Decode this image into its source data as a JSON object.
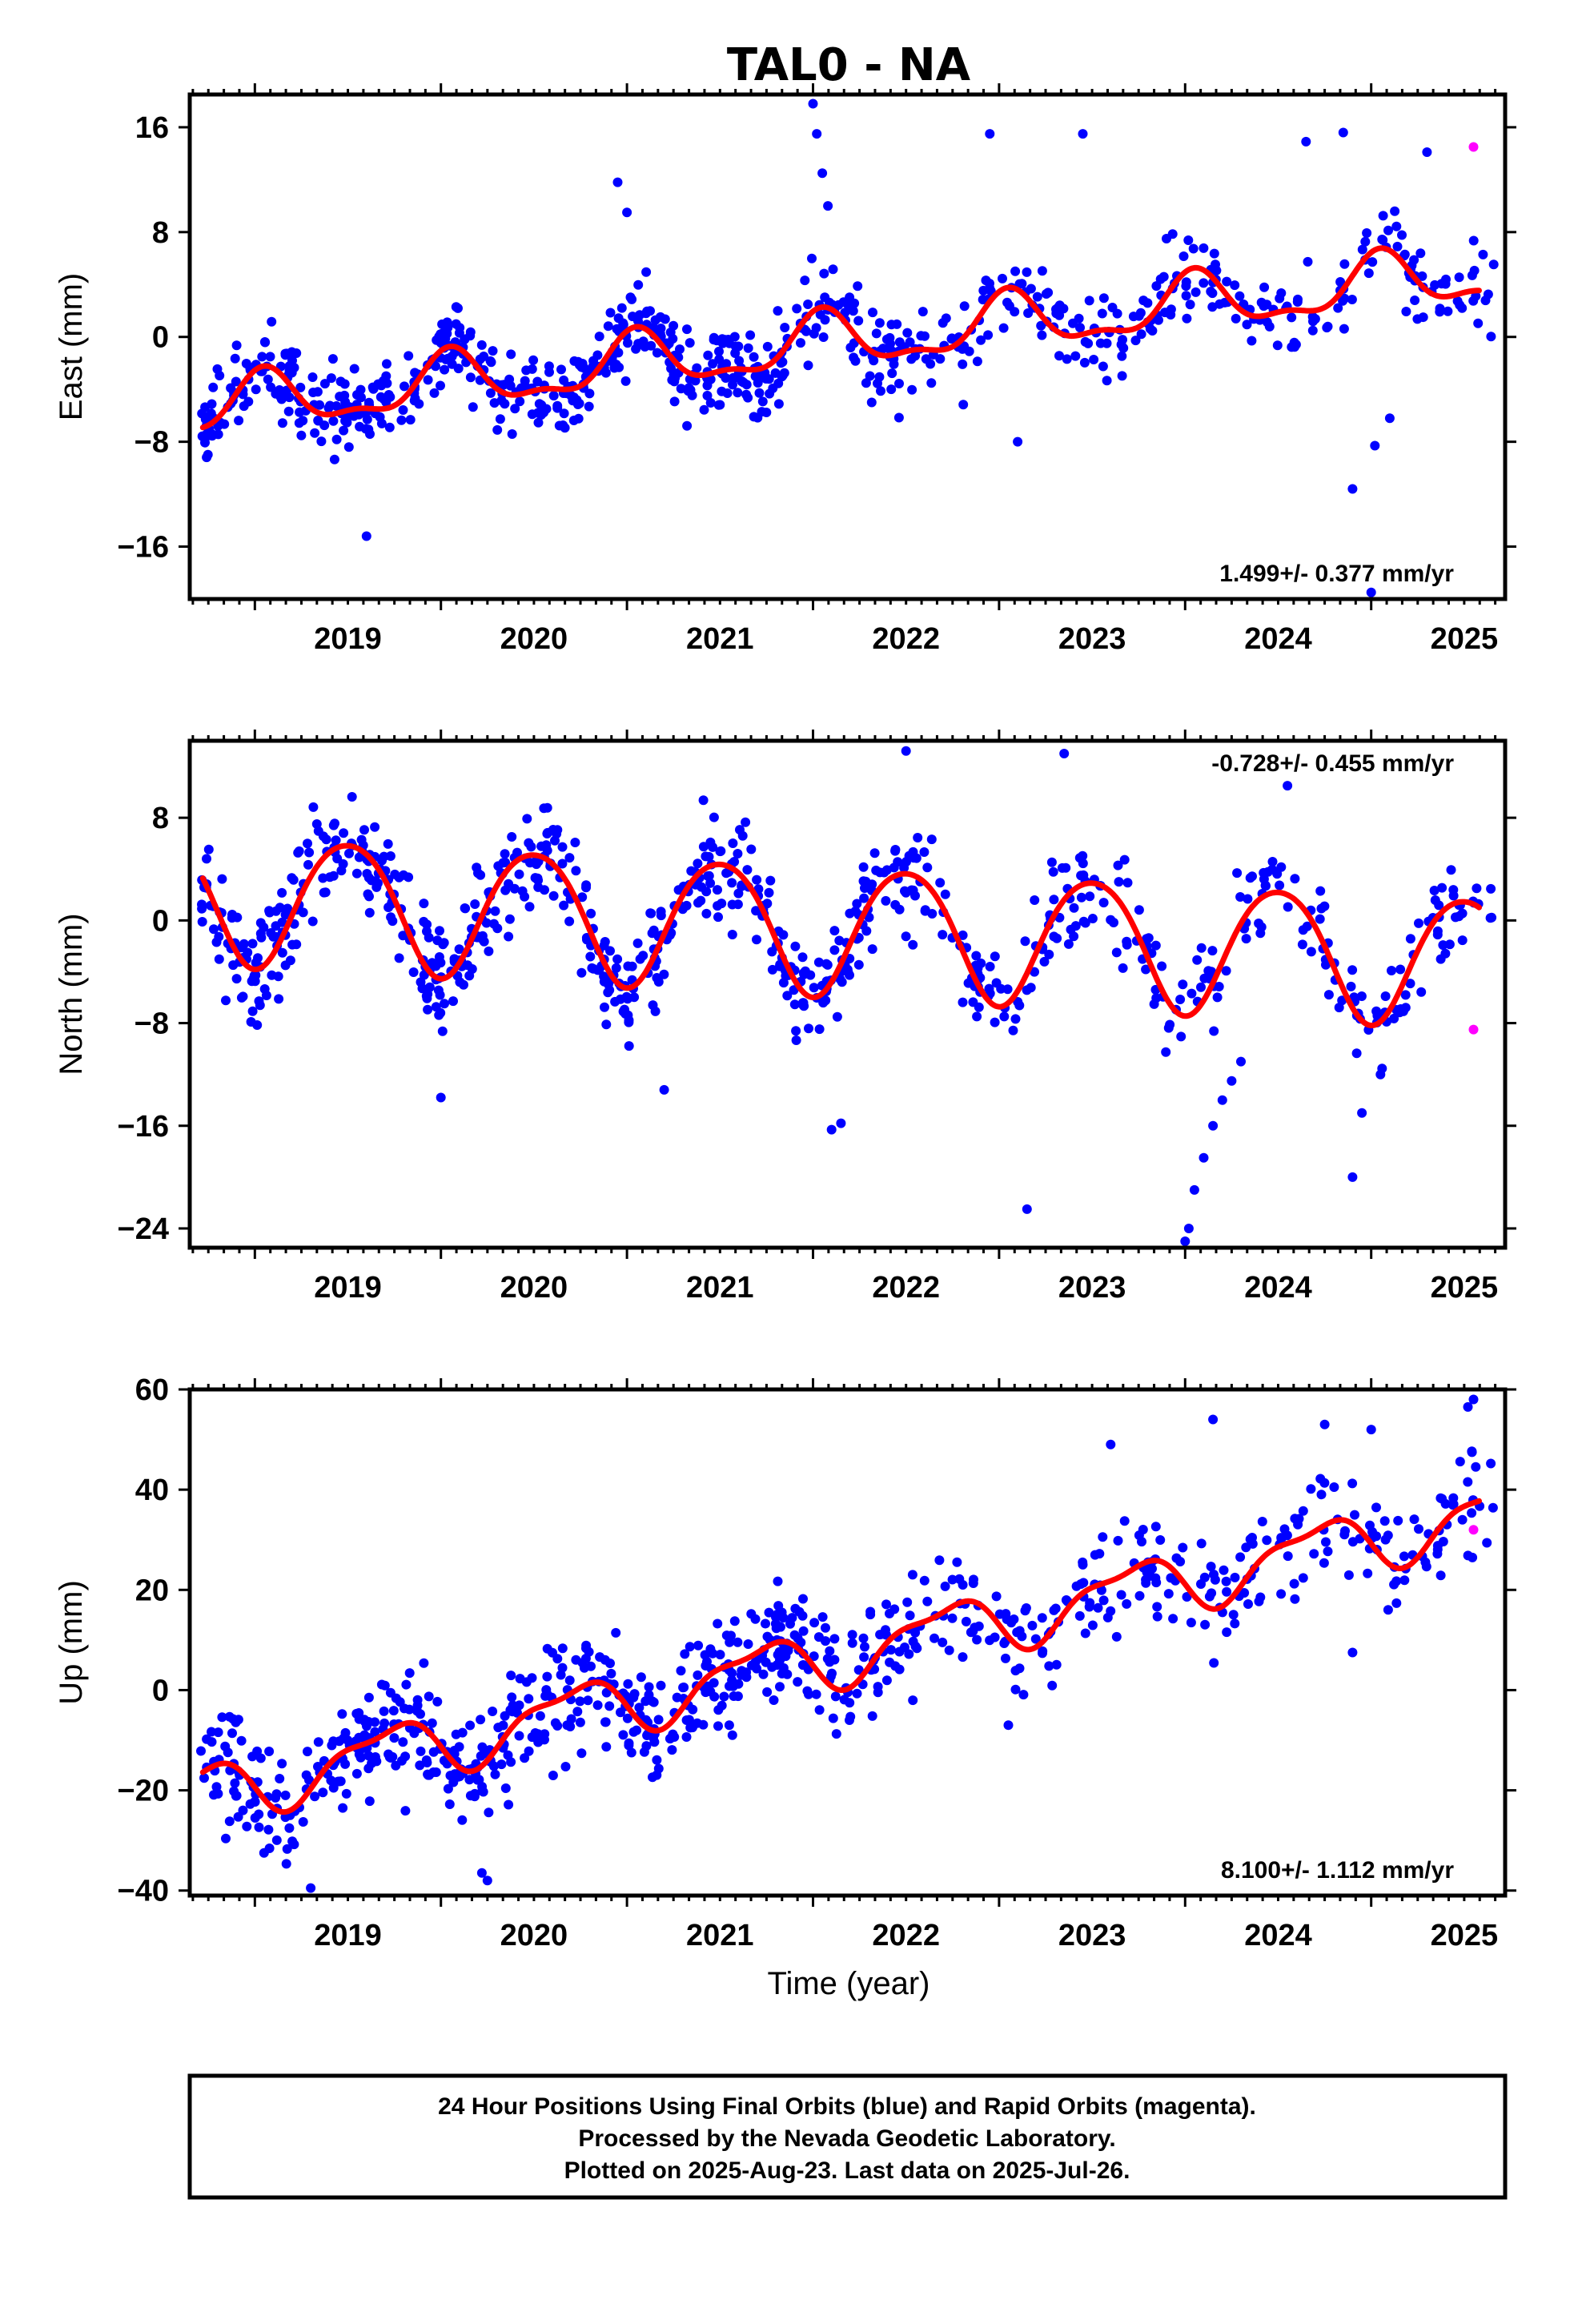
{
  "title": "TAL0 - NA",
  "xlabel": "Time (year)",
  "note_lines": [
    "24 Hour Positions Using Final Orbits (blue) and Rapid Orbits (magenta).",
    "Processed by the Nevada Geodetic Laboratory.",
    "Plotted on 2025-Aug-23. Last data on 2025-Jul-26."
  ],
  "colors": {
    "final_orbits": "#0000ff",
    "rapid_orbits": "#ff00ff",
    "fit": "#ff0000",
    "axes": "#000000"
  },
  "chart_data": [
    {
      "type": "scatter",
      "title": "TAL0 - NA",
      "ylabel": "East (mm)",
      "xlabel": "",
      "xlim": [
        2018.65,
        2025.72
      ],
      "ylim": [
        -20,
        18.5
      ],
      "xticks": [
        2019,
        2020,
        2021,
        2022,
        2023,
        2024,
        2025
      ],
      "yticks": [
        16,
        8,
        0,
        -8,
        -16
      ],
      "ytick_labels": [
        "16",
        "8",
        "0",
        "−8",
        "−16"
      ],
      "rate_label": "1.499+/- 0.377 mm/yr",
      "rate_position": "bottom-right",
      "series": [
        {
          "name": "Final Orbits",
          "color": "#0000ff",
          "mode": "markers"
        },
        {
          "name": "Rapid Orbits",
          "color": "#ff00ff",
          "mode": "markers",
          "x": [
            2025.55
          ],
          "y": [
            14.5
          ]
        },
        {
          "name": "fit",
          "color": "#ff0000",
          "mode": "line"
        }
      ],
      "fit_params": {
        "offset": -0.6,
        "trend": 1.499,
        "t0": 2022.0,
        "amp1": 2.0,
        "phase1": 2019.05,
        "amp2": 0.8,
        "phase2": 2019.55
      },
      "points_approx": {
        "spread": 1.6,
        "density": 250
      },
      "outliers": [
        [
          2019.6,
          -15.2
        ],
        [
          2024.9,
          -11.6
        ],
        [
          2025.0,
          -19.5
        ],
        [
          2025.02,
          -8.3
        ],
        [
          2025.1,
          -6.2
        ],
        [
          2020.95,
          11.8
        ],
        [
          2021.0,
          9.5
        ],
        [
          2022.0,
          17.8
        ],
        [
          2022.02,
          15.5
        ],
        [
          2022.05,
          12.5
        ],
        [
          2022.08,
          10.0
        ],
        [
          2023.45,
          15.5
        ],
        [
          2022.95,
          15.5
        ],
        [
          2024.65,
          14.9
        ],
        [
          2024.85,
          15.6
        ],
        [
          2025.3,
          14.1
        ],
        [
          2023.9,
          7.5
        ],
        [
          2023.1,
          -8.0
        ]
      ]
    },
    {
      "type": "scatter",
      "ylabel": "North (mm)",
      "xlabel": "",
      "xlim": [
        2018.65,
        2025.72
      ],
      "ylim": [
        -25.5,
        14
      ],
      "xticks": [
        2019,
        2020,
        2021,
        2022,
        2023,
        2024,
        2025
      ],
      "yticks": [
        8,
        0,
        -8,
        -16,
        -24
      ],
      "ytick_labels": [
        "8",
        "0",
        "−8",
        "−16",
        "−24"
      ],
      "rate_label": "-0.728+/- 0.455 mm/yr",
      "rate_position": "top-right",
      "series": [
        {
          "name": "Final Orbits",
          "color": "#0000ff",
          "mode": "markers"
        },
        {
          "name": "Rapid Orbits",
          "color": "#ff00ff",
          "mode": "markers",
          "x": [
            2025.55
          ],
          "y": [
            -8.5
          ]
        },
        {
          "name": "fit",
          "color": "#ff0000",
          "mode": "line"
        }
      ],
      "fit_params": {
        "offset": -0.5,
        "trend": -0.728,
        "t0": 2022.0,
        "amp1": 5.0,
        "phase1": 2019.5,
        "amp2": 0.5,
        "phase2": 2019.75
      },
      "points_approx": {
        "spread": 2.0,
        "density": 250
      },
      "outliers": [
        [
          2020.0,
          -13.8
        ],
        [
          2021.2,
          -13.2
        ],
        [
          2022.1,
          -16.3
        ],
        [
          2022.15,
          -15.8
        ],
        [
          2023.15,
          -22.5
        ],
        [
          2024.0,
          -25.0
        ],
        [
          2024.02,
          -24.0
        ],
        [
          2024.05,
          -21.0
        ],
        [
          2024.1,
          -18.5
        ],
        [
          2024.15,
          -16.0
        ],
        [
          2024.2,
          -14.0
        ],
        [
          2024.25,
          -12.5
        ],
        [
          2024.3,
          -11.0
        ],
        [
          2024.9,
          -20.0
        ],
        [
          2024.95,
          -15.0
        ],
        [
          2025.05,
          -12.0
        ],
        [
          2023.35,
          13.0
        ],
        [
          2022.5,
          13.2
        ],
        [
          2024.55,
          10.5
        ]
      ]
    },
    {
      "type": "scatter",
      "ylabel": "Up (mm)",
      "xlabel": "Time (year)",
      "xlim": [
        2018.65,
        2025.72
      ],
      "ylim": [
        -41,
        60
      ],
      "xticks": [
        2019,
        2020,
        2021,
        2022,
        2023,
        2024,
        2025
      ],
      "yticks": [
        60,
        40,
        20,
        0,
        -20,
        -40
      ],
      "ytick_labels": [
        "60",
        "40",
        "20",
        "0",
        "−20",
        "−40"
      ],
      "rate_label": "8.100+/- 1.112 mm/yr",
      "rate_position": "bottom-right",
      "series": [
        {
          "name": "Final Orbits",
          "color": "#0000ff",
          "mode": "markers"
        },
        {
          "name": "Rapid Orbits",
          "color": "#ff00ff",
          "mode": "markers",
          "x": [
            2025.55
          ],
          "y": [
            32
          ]
        },
        {
          "name": "fit",
          "color": "#ff0000",
          "mode": "line"
        }
      ],
      "fit_params": {
        "offset": 6.0,
        "trend": 8.1,
        "t0": 2022.0,
        "amp1": 5.5,
        "phase1": 2019.7,
        "amp2": 2.0,
        "phase2": 2019.9
      },
      "points_approx": {
        "spread": 5.5,
        "density": 250
      },
      "outliers": [
        [
          2019.3,
          -39.5
        ],
        [
          2020.25,
          -38.0
        ],
        [
          2020.22,
          -36.5
        ],
        [
          2024.15,
          54.0
        ],
        [
          2024.75,
          53.0
        ],
        [
          2025.0,
          52.0
        ],
        [
          2025.55,
          58.0
        ],
        [
          2025.52,
          56.5
        ],
        [
          2023.6,
          49.0
        ],
        [
          2024.9,
          7.5
        ],
        [
          2023.05,
          -7.0
        ]
      ]
    }
  ]
}
